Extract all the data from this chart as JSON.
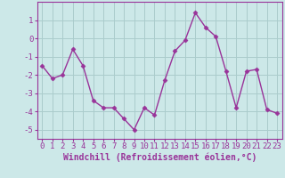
{
  "x": [
    0,
    1,
    2,
    3,
    4,
    5,
    6,
    7,
    8,
    9,
    10,
    11,
    12,
    13,
    14,
    15,
    16,
    17,
    18,
    19,
    20,
    21,
    22,
    23
  ],
  "y": [
    -1.5,
    -2.2,
    -2.0,
    -0.6,
    -1.5,
    -3.4,
    -3.8,
    -3.8,
    -4.4,
    -5.0,
    -3.8,
    -4.2,
    -2.3,
    -0.7,
    -0.1,
    1.4,
    0.6,
    0.1,
    -1.8,
    -3.8,
    -1.8,
    -1.7,
    -3.9,
    -4.1
  ],
  "line_color": "#993399",
  "marker": "D",
  "marker_size": 2.5,
  "bg_color": "#cce8e8",
  "grid_color": "#aacccc",
  "xlabel": "Windchill (Refroidissement éolien,°C)",
  "ylabel": "",
  "title": "",
  "xlim": [
    -0.5,
    23.5
  ],
  "ylim": [
    -5.5,
    2.0
  ],
  "yticks": [
    -5,
    -4,
    -3,
    -2,
    -1,
    0,
    1
  ],
  "xticks": [
    0,
    1,
    2,
    3,
    4,
    5,
    6,
    7,
    8,
    9,
    10,
    11,
    12,
    13,
    14,
    15,
    16,
    17,
    18,
    19,
    20,
    21,
    22,
    23
  ],
  "tick_fontsize": 6.5,
  "xlabel_fontsize": 7,
  "line_width": 1.0,
  "tick_color": "#993399",
  "xlabel_color": "#993399",
  "spine_color": "#993399"
}
